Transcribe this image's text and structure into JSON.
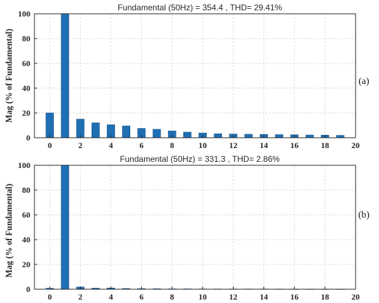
{
  "chart_data": [
    {
      "type": "bar",
      "title": "Fundamental (50Hz) = 354.4 , THD= 29.41%",
      "ylabel": "Mag (% of Fundamental)",
      "xlabel": "",
      "panel_label": "(a)",
      "x": [
        0,
        1,
        2,
        3,
        4,
        5,
        6,
        7,
        8,
        9,
        10,
        11,
        12,
        13,
        14,
        15,
        16,
        17,
        18,
        19
      ],
      "values": [
        20,
        100,
        15,
        12,
        10.5,
        9.5,
        7.5,
        6.8,
        5.5,
        4.5,
        3.8,
        3.2,
        3.0,
        2.8,
        2.7,
        2.5,
        2.4,
        2.2,
        2.1,
        1.9
      ],
      "xlim": [
        -1,
        20
      ],
      "ylim": [
        0,
        100
      ],
      "xticks": [
        0,
        2,
        4,
        6,
        8,
        10,
        12,
        14,
        16,
        18,
        20
      ],
      "yticks": [
        0,
        20,
        40,
        60,
        80,
        100
      ],
      "grid": true,
      "bar_color": "#1f6fb5"
    },
    {
      "type": "bar",
      "title": "Fundamental (50Hz) = 331.3 , THD= 2.86%",
      "ylabel": "Mag (% of Fundamental)",
      "xlabel": "",
      "panel_label": "(b)",
      "x": [
        0,
        1,
        2,
        3,
        4,
        5,
        6,
        7,
        8,
        9,
        10,
        11,
        12,
        13,
        14,
        15,
        16,
        17,
        18,
        19
      ],
      "values": [
        0.8,
        100,
        1.8,
        0.9,
        1.0,
        0.6,
        0.5,
        0.4,
        0.3,
        0.3,
        0.25,
        0.2,
        0.2,
        0.2,
        0.2,
        0.15,
        0.15,
        0.15,
        0.15,
        0.1
      ],
      "xlim": [
        -1,
        20
      ],
      "ylim": [
        0,
        100
      ],
      "xticks": [
        0,
        2,
        4,
        6,
        8,
        10,
        12,
        14,
        16,
        18,
        20
      ],
      "yticks": [
        0,
        20,
        40,
        60,
        80,
        100
      ],
      "grid": true,
      "bar_color": "#1f6fb5"
    }
  ]
}
